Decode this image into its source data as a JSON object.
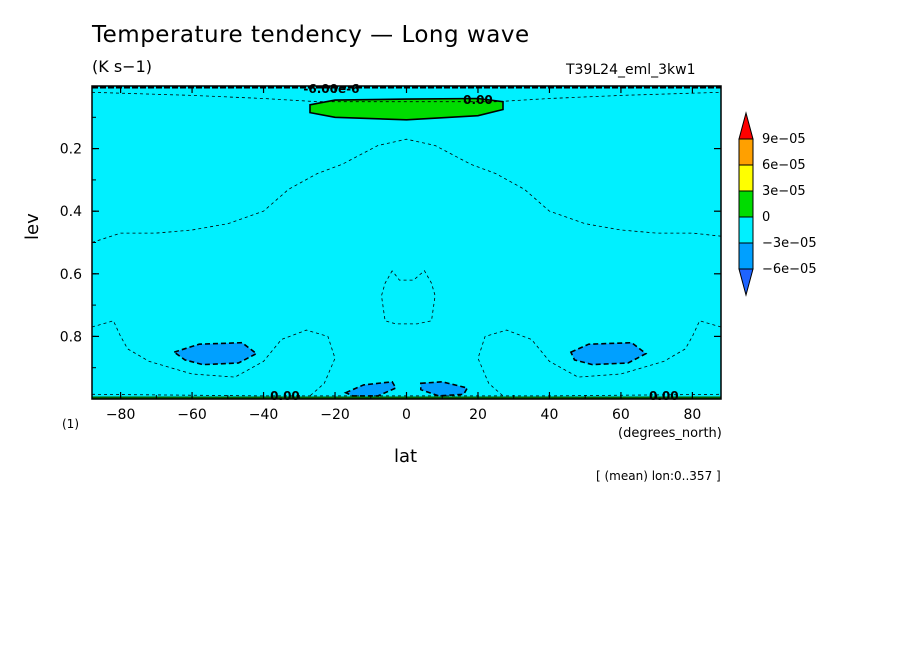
{
  "chart_data": {
    "type": "heatmap",
    "title": "Temperature tendency — Long wave",
    "units": "(K s−1)",
    "run_id": "T39L24_eml_3kw1",
    "xlabel": "lat",
    "x_units": "(degrees_north)",
    "ylabel": "lev",
    "panel_label": "(1)",
    "note": "[ (mean) lon:0..357 ]",
    "xlim": [
      -88,
      88
    ],
    "ylim": [
      1.0,
      0.0
    ],
    "x_ticks": [
      -80,
      -60,
      -40,
      -20,
      0,
      20,
      40,
      60,
      80
    ],
    "x_tick_labels": [
      "−80",
      "−60",
      "−40",
      "−20",
      "0",
      "20",
      "40",
      "60",
      "80"
    ],
    "y_ticks": [
      0.2,
      0.4,
      0.6,
      0.8
    ],
    "y_tick_labels": [
      "0.2",
      "0.4",
      "0.6",
      "0.8"
    ],
    "colorbar": {
      "bins": [
        {
          "color": "#1e64ff",
          "label": ""
        },
        {
          "color": "#00a0ff",
          "label": "−6e−05"
        },
        {
          "color": "#00f0ff",
          "label": "−3e−05"
        },
        {
          "color": "#00dc00",
          "label": "0"
        },
        {
          "color": "#ffff00",
          "label": "3e−05"
        },
        {
          "color": "#ffa000",
          "label": "6e−05"
        },
        {
          "color": "#ff0000",
          "label": "9e−05"
        }
      ]
    },
    "background_color": "#00f0ff",
    "contour_labels": [
      {
        "text": "-6.00e-6",
        "x": -21,
        "y": 0.01
      },
      {
        "text": "0.00",
        "x": 20,
        "y": 0.045
      },
      {
        "text": "0.00",
        "x": -34,
        "y": 0.99
      },
      {
        "text": "0.00",
        "x": 72,
        "y": 0.99
      }
    ],
    "regions": [
      {
        "name": "warming-upper",
        "color": "#00dc00",
        "points": [
          [
            -27,
            0.06
          ],
          [
            -20,
            0.045
          ],
          [
            0,
            0.042
          ],
          [
            20,
            0.04
          ],
          [
            27,
            0.05
          ],
          [
            27,
            0.075
          ],
          [
            20,
            0.095
          ],
          [
            0,
            0.108
          ],
          [
            -20,
            0.1
          ],
          [
            -27,
            0.085
          ]
        ]
      },
      {
        "name": "cooling-south-lower",
        "color": "#00a0ff",
        "points": [
          [
            -65,
            0.85
          ],
          [
            -58,
            0.825
          ],
          [
            -46,
            0.82
          ],
          [
            -42,
            0.855
          ],
          [
            -47,
            0.885
          ],
          [
            -57,
            0.89
          ],
          [
            -62,
            0.875
          ]
        ]
      },
      {
        "name": "cooling-north-lower",
        "color": "#00a0ff",
        "points": [
          [
            46,
            0.85
          ],
          [
            51,
            0.825
          ],
          [
            63,
            0.82
          ],
          [
            67,
            0.855
          ],
          [
            62,
            0.885
          ],
          [
            52,
            0.89
          ],
          [
            47,
            0.875
          ]
        ]
      },
      {
        "name": "cooling-equator-south",
        "color": "#00a0ff",
        "points": [
          [
            -17,
            0.98
          ],
          [
            -12,
            0.955
          ],
          [
            -4,
            0.945
          ],
          [
            -3,
            0.965
          ],
          [
            -8,
            0.99
          ],
          [
            -15,
            0.99
          ]
        ]
      },
      {
        "name": "cooling-equator-north",
        "color": "#00a0ff",
        "points": [
          [
            4,
            0.95
          ],
          [
            10,
            0.945
          ],
          [
            17,
            0.965
          ],
          [
            16,
            0.985
          ],
          [
            9,
            0.99
          ],
          [
            4,
            0.97
          ]
        ]
      }
    ],
    "dashed_contours": [
      {
        "name": "upper-level",
        "points": [
          [
            -88,
            0.5
          ],
          [
            -80,
            0.47
          ],
          [
            -70,
            0.47
          ],
          [
            -60,
            0.46
          ],
          [
            -50,
            0.44
          ],
          [
            -40,
            0.4
          ],
          [
            -33,
            0.33
          ],
          [
            -25,
            0.28
          ],
          [
            -18,
            0.25
          ],
          [
            -8,
            0.19
          ],
          [
            0,
            0.17
          ],
          [
            8,
            0.19
          ],
          [
            18,
            0.25
          ],
          [
            25,
            0.28
          ],
          [
            33,
            0.33
          ],
          [
            40,
            0.4
          ],
          [
            50,
            0.44
          ],
          [
            60,
            0.46
          ],
          [
            70,
            0.47
          ],
          [
            80,
            0.47
          ],
          [
            88,
            0.48
          ]
        ]
      },
      {
        "name": "near-top",
        "points": [
          [
            -88,
            0.02
          ],
          [
            -60,
            0.03
          ],
          [
            -40,
            0.04
          ],
          [
            -25,
            0.05
          ],
          [
            25,
            0.05
          ],
          [
            40,
            0.04
          ],
          [
            60,
            0.03
          ],
          [
            88,
            0.02
          ]
        ]
      },
      {
        "name": "equatorial-mid",
        "points": [
          [
            -4,
            0.59
          ],
          [
            -6,
            0.63
          ],
          [
            -7,
            0.67
          ],
          [
            -6,
            0.75
          ],
          [
            -3,
            0.76
          ],
          [
            3,
            0.76
          ],
          [
            7,
            0.75
          ],
          [
            8,
            0.67
          ],
          [
            7,
            0.63
          ],
          [
            5,
            0.59
          ],
          [
            2,
            0.62
          ],
          [
            -2,
            0.62
          ],
          [
            -4,
            0.59
          ]
        ]
      },
      {
        "name": "south-lower",
        "points": [
          [
            -88,
            0.77
          ],
          [
            -82,
            0.75
          ],
          [
            -80,
            0.8
          ],
          [
            -78,
            0.84
          ],
          [
            -72,
            0.88
          ],
          [
            -60,
            0.92
          ],
          [
            -48,
            0.93
          ],
          [
            -40,
            0.88
          ],
          [
            -35,
            0.81
          ],
          [
            -28,
            0.78
          ],
          [
            -22,
            0.8
          ],
          [
            -20,
            0.87
          ],
          [
            -23,
            0.95
          ],
          [
            -27,
            0.99
          ]
        ]
      },
      {
        "name": "north-lower",
        "points": [
          [
            88,
            0.77
          ],
          [
            82,
            0.75
          ],
          [
            80,
            0.8
          ],
          [
            78,
            0.84
          ],
          [
            72,
            0.88
          ],
          [
            60,
            0.92
          ],
          [
            48,
            0.93
          ],
          [
            40,
            0.88
          ],
          [
            35,
            0.81
          ],
          [
            28,
            0.78
          ],
          [
            22,
            0.8
          ],
          [
            20,
            0.87
          ],
          [
            23,
            0.95
          ],
          [
            27,
            0.99
          ]
        ]
      },
      {
        "name": "bottom-near",
        "points": [
          [
            -88,
            0.985
          ],
          [
            -40,
            0.99
          ],
          [
            -10,
            0.99
          ],
          [
            10,
            0.99
          ],
          [
            40,
            0.99
          ],
          [
            88,
            0.985
          ]
        ]
      }
    ]
  }
}
